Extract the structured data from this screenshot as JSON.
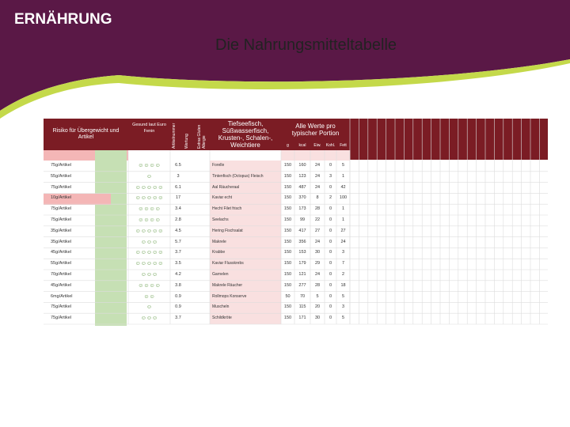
{
  "header": {
    "section": "ERNÄHRUNG",
    "title": "Die Nahrungsmitteltabelle"
  },
  "table": {
    "headers": {
      "risk": "Risiko für Übergewicht und Artikel",
      "gesund": "Gesund laut Euro Fenin",
      "artikelnummer": "Artikelnummer",
      "wertung": "Wertung",
      "extras": "Extras Gluten Allergie",
      "category": "Tiefseefisch, Süßwasserfisch, Krusten-, Schalen-, Weichtiere",
      "per_portion": "Alle Werte pro typischer Portion",
      "units": [
        "g",
        "kcal",
        "Eiw.",
        "Kohl.",
        "Fett"
      ]
    },
    "rows": [
      [
        "75g/Artikel",
        "☺☺☺☺",
        6.5,
        "Forelle",
        150,
        160,
        24,
        0,
        5
      ],
      [
        "55g/Artikel",
        "☺",
        3,
        "Tintenfisch (Octopus) Fleisch",
        150,
        123,
        24,
        3,
        1
      ],
      [
        "75g/Artikel",
        "☺☺☺☺☺",
        6.1,
        "Aal Räucheraal",
        150,
        487,
        24,
        0,
        42
      ],
      [
        "10g/Artikel",
        "☺☺☺☺☺",
        17,
        "Kaviar echt",
        150,
        370,
        8,
        2,
        100
      ],
      [
        "75g/Artikel",
        "☺☺☺☺",
        3.4,
        "Hecht Filet frisch",
        150,
        173,
        28,
        0,
        1
      ],
      [
        "75g/Artikel",
        "☺☺☺☺",
        2.8,
        "Seelachs",
        150,
        99,
        22,
        0,
        1
      ],
      [
        "35g/Artikel",
        "☺☺☺☺☺",
        4.5,
        "Hering Fischsalat",
        150,
        417,
        27,
        0,
        27
      ],
      [
        "35g/Artikel",
        "☺☺☺",
        5.7,
        "Makrele",
        150,
        356,
        24,
        0,
        24
      ],
      [
        "45g/Artikel",
        "☺☺☺☺☺",
        3.7,
        "Krabbe",
        150,
        153,
        30,
        0,
        3
      ],
      [
        "55g/Artikel",
        "☺☺☺☺☺",
        3.5,
        "Kaviar Flusskrebs",
        150,
        179,
        29,
        0,
        7
      ],
      [
        "70g/Artikel",
        "☺☺☺",
        4.2,
        "Garnelen",
        150,
        121,
        24,
        0,
        2
      ],
      [
        "45g/Artikel",
        "☺☺☺☺",
        3.8,
        "Makrele Räucher",
        150,
        277,
        28,
        0,
        18
      ],
      [
        "6mg/Artikel",
        "☺☺",
        0.9,
        "Rollmops Konserve",
        50,
        70,
        5,
        0,
        5
      ],
      [
        "75g/Artikel",
        "☺",
        0.9,
        "Muscheln",
        150,
        115,
        20,
        0,
        3
      ],
      [
        "75g/Artikel",
        "☺☺☺",
        3.7,
        "Schildkröte",
        150,
        171,
        30,
        0,
        5
      ]
    ]
  }
}
